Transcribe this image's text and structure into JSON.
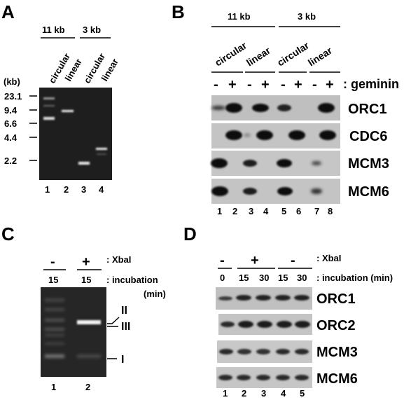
{
  "panels": {
    "A": {
      "letter": "A",
      "group_11kb": "11 kb",
      "group_3kb": "3 kb",
      "lane_headers": [
        "circular",
        "linear",
        "circular",
        "linear"
      ],
      "unit": "(kb)",
      "size_markers": [
        "23.1",
        "9.4",
        "6.6",
        "4.4",
        "2.2"
      ],
      "lane_numbers": [
        "1",
        "2",
        "3",
        "4"
      ]
    },
    "B": {
      "letter": "B",
      "group_11kb": "11 kb",
      "group_3kb": "3 kb",
      "lane_headers": [
        "circular",
        "linear",
        "circular",
        "linear"
      ],
      "geminin_signs": [
        "-",
        "+",
        "-",
        "+",
        "-",
        "+",
        "-",
        "+"
      ],
      "geminin_label": ": geminin",
      "blot_labels": [
        "ORC1",
        "CDC6",
        "MCM3",
        "MCM6"
      ],
      "lane_numbers": [
        "1",
        "2",
        "3",
        "4",
        "5",
        "6",
        "7",
        "8"
      ]
    },
    "C": {
      "letter": "C",
      "xbai_signs": [
        "-",
        "+"
      ],
      "xbai_label": ": XbaI",
      "incubation_values": [
        "15",
        "15"
      ],
      "incubation_label": ": incubation",
      "min_label": "(min)",
      "form_labels": [
        "II",
        "III",
        "I"
      ],
      "lane_numbers": [
        "1",
        "2"
      ]
    },
    "D": {
      "letter": "D",
      "xbai_signs": [
        "-",
        "+",
        "-"
      ],
      "xbai_label": ": XbaI",
      "incubation_values": [
        "0",
        "15",
        "30",
        "15",
        "30"
      ],
      "incubation_label": ": incubation (min)",
      "blot_labels": [
        "ORC1",
        "ORC2",
        "MCM3",
        "MCM6"
      ],
      "lane_numbers": [
        "1",
        "2",
        "3",
        "4",
        "5"
      ]
    }
  }
}
